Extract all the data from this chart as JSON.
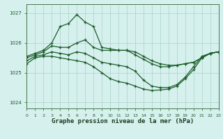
{
  "title": "Graphe pression niveau de la mer (hPa)",
  "bg_color": "#d6f0ee",
  "grid_color": "#b0d8cc",
  "line_color": "#1a5c28",
  "xlim": [
    0,
    23
  ],
  "ylim": [
    1023.8,
    1027.3
  ],
  "yticks": [
    1024,
    1025,
    1026,
    1027
  ],
  "xticks": [
    0,
    1,
    2,
    3,
    4,
    5,
    6,
    7,
    8,
    9,
    10,
    11,
    12,
    13,
    14,
    15,
    16,
    17,
    18,
    19,
    20,
    21,
    22,
    23
  ],
  "series": [
    [
      1025.55,
      1025.65,
      1025.75,
      1026.0,
      1026.55,
      1026.65,
      1026.95,
      1026.7,
      1026.55,
      1025.85,
      1025.8,
      1025.75,
      1025.75,
      1025.6,
      1025.45,
      1025.3,
      1025.2,
      1025.2,
      1025.25,
      1025.3,
      1025.35,
      1025.5,
      1025.65,
      1025.7
    ],
    [
      1025.5,
      1025.6,
      1025.7,
      1025.9,
      1025.85,
      1025.85,
      1026.0,
      1026.1,
      1025.85,
      1025.75,
      1025.75,
      1025.75,
      1025.75,
      1025.7,
      1025.55,
      1025.4,
      1025.3,
      1025.25,
      1025.25,
      1025.3,
      1025.35,
      1025.5,
      1025.65,
      1025.7
    ],
    [
      1025.4,
      1025.55,
      1025.6,
      1025.7,
      1025.65,
      1025.6,
      1025.7,
      1025.65,
      1025.5,
      1025.35,
      1025.3,
      1025.25,
      1025.2,
      1025.05,
      1024.75,
      1024.55,
      1024.5,
      1024.5,
      1024.6,
      1024.85,
      1025.2,
      1025.55,
      1025.65,
      1025.7
    ],
    [
      1025.3,
      1025.5,
      1025.55,
      1025.55,
      1025.5,
      1025.45,
      1025.4,
      1025.35,
      1025.2,
      1025.0,
      1024.8,
      1024.7,
      1024.65,
      1024.55,
      1024.45,
      1024.4,
      1024.42,
      1024.45,
      1024.55,
      1024.8,
      1025.1,
      1025.5,
      1025.65,
      1025.7
    ]
  ]
}
